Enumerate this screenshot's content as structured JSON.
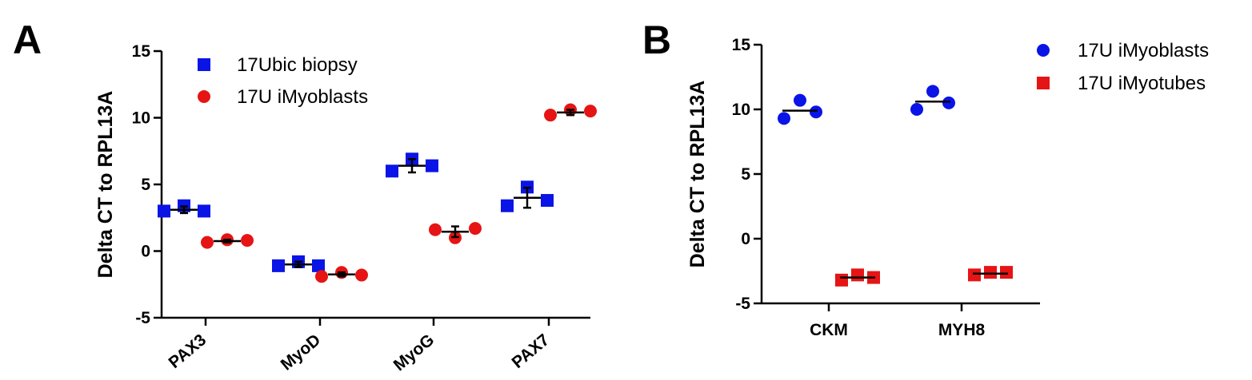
{
  "chart_data": [
    {
      "panel": "A",
      "type": "scatter",
      "title": "",
      "xlabel": "",
      "ylabel": "Delta CT to RPL13A",
      "ylim": [
        -5,
        15
      ],
      "yticks": [
        "-5",
        "0",
        "5",
        "10",
        "15"
      ],
      "categories": [
        "PAX3",
        "MyoD",
        "MyoG",
        "PAX7"
      ],
      "legend": "top-left",
      "series": [
        {
          "name": "17Ubic biopsy",
          "marker": "square",
          "color": "#0a14e6",
          "points": [
            [
              3.0,
              3.4,
              3.0
            ],
            [
              -1.1,
              -0.8,
              -1.1
            ],
            [
              6.0,
              6.9,
              6.4
            ],
            [
              3.4,
              4.8,
              3.8
            ]
          ],
          "mean": [
            3.1,
            -1.0,
            6.4,
            4.0
          ],
          "sd": [
            0.25,
            0.2,
            0.5,
            0.75
          ]
        },
        {
          "name": "17U iMyoblasts",
          "marker": "circle",
          "color": "#e61414",
          "points": [
            [
              0.65,
              0.85,
              0.8
            ],
            [
              -1.9,
              -1.6,
              -1.8
            ],
            [
              1.6,
              1.0,
              1.7
            ],
            [
              10.2,
              10.6,
              10.5
            ]
          ],
          "mean": [
            0.75,
            -1.75,
            1.45,
            10.4
          ],
          "sd": [
            0.1,
            0.15,
            0.4,
            0.2
          ]
        }
      ]
    },
    {
      "panel": "B",
      "type": "scatter",
      "title": "",
      "xlabel": "",
      "ylabel": "Delta CT to RPL13A",
      "ylim": [
        -5,
        15
      ],
      "yticks": [
        "-5",
        "0",
        "5",
        "10",
        "15"
      ],
      "categories": [
        "CKM",
        "MYH8"
      ],
      "legend": "top-right",
      "series": [
        {
          "name": "17U iMyoblasts",
          "marker": "circle",
          "color": "#0a14e6",
          "points": [
            [
              9.3,
              10.7,
              9.8
            ],
            [
              10.0,
              11.4,
              10.5
            ]
          ],
          "mean": [
            9.9,
            10.6
          ]
        },
        {
          "name": "17U iMyotubes",
          "marker": "square",
          "color": "#e61414",
          "points": [
            [
              -3.2,
              -2.8,
              -3.0
            ],
            [
              -2.8,
              -2.6,
              -2.6
            ]
          ],
          "mean": [
            -3.0,
            -2.7
          ]
        }
      ]
    }
  ]
}
